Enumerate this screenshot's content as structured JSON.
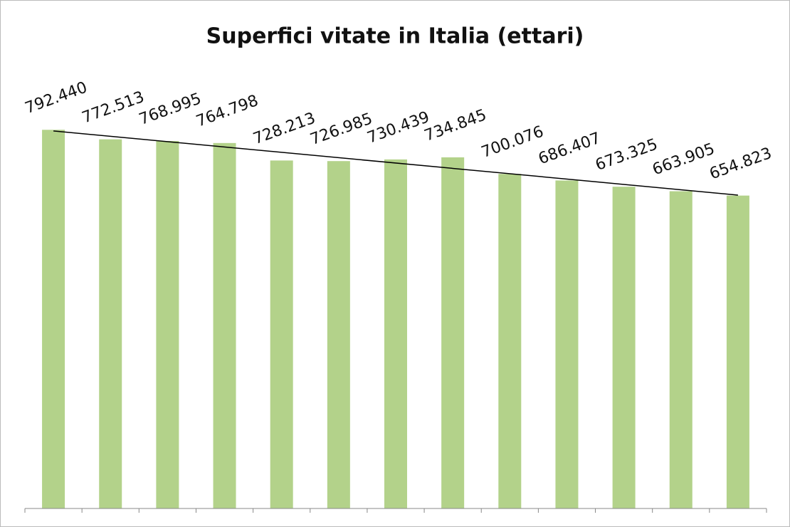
{
  "chart_data": {
    "type": "bar",
    "title": "Superfici vitate in Italia (ettari)",
    "categories": [
      null,
      null,
      null,
      null,
      null,
      null,
      null,
      null,
      null,
      null,
      null,
      null,
      null
    ],
    "values": [
      792440,
      772513,
      768995,
      764798,
      728213,
      726985,
      730439,
      734845,
      700076,
      686407,
      673325,
      663905,
      654823
    ],
    "value_labels": [
      "792.440",
      "772.513",
      "768.995",
      "764.798",
      "728.213",
      "726.985",
      "730.439",
      "734.845",
      "700.076",
      "686.407",
      "673.325",
      "663.905",
      "654.823"
    ],
    "color": "#b3d28a",
    "ylim": [
      0,
      1000000
    ],
    "trendline": true
  }
}
